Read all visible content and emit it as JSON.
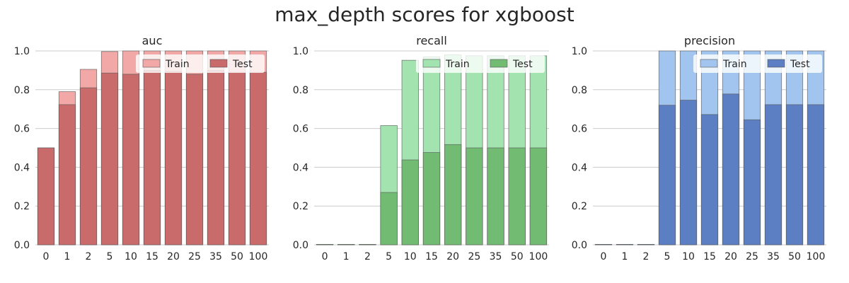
{
  "figure": {
    "title": "max_depth scores for xgboost"
  },
  "chart_data": [
    {
      "type": "bar",
      "title": "auc",
      "categories": [
        "0",
        "1",
        "2",
        "5",
        "10",
        "15",
        "20",
        "25",
        "35",
        "50",
        "100"
      ],
      "series": [
        {
          "name": "Train",
          "values": [
            0.5,
            0.79,
            0.905,
            0.997,
            1.0,
            1.0,
            1.0,
            1.0,
            1.0,
            1.0,
            1.0
          ],
          "color": "#f1a8a6"
        },
        {
          "name": "Test",
          "values": [
            0.5,
            0.723,
            0.81,
            0.886,
            0.88,
            0.9,
            0.895,
            0.88,
            0.9,
            0.89,
            0.89
          ],
          "color": "#c96b6a"
        }
      ],
      "ylim": [
        0,
        1.0
      ],
      "yticks": [
        "0.0",
        "0.2",
        "0.4",
        "0.6",
        "0.8",
        "1.0"
      ],
      "legend": "top-right",
      "grid": "y"
    },
    {
      "type": "bar",
      "title": "recall",
      "categories": [
        "0",
        "1",
        "2",
        "5",
        "10",
        "15",
        "20",
        "25",
        "35",
        "50",
        "100"
      ],
      "series": [
        {
          "name": "Train",
          "values": [
            0.0,
            0.0,
            0.0,
            0.615,
            0.952,
            0.97,
            0.98,
            0.975,
            0.975,
            0.975,
            0.975
          ],
          "color": "#a2e3b0"
        },
        {
          "name": "Test",
          "values": [
            0.0,
            0.0,
            0.0,
            0.27,
            0.438,
            0.476,
            0.517,
            0.5,
            0.5,
            0.5,
            0.5
          ],
          "color": "#72bb72"
        }
      ],
      "ylim": [
        0,
        1.0
      ],
      "yticks": [
        "0.0",
        "0.2",
        "0.4",
        "0.6",
        "0.8",
        "1.0"
      ],
      "legend": "top-right",
      "grid": "y"
    },
    {
      "type": "bar",
      "title": "precision",
      "categories": [
        "0",
        "1",
        "2",
        "5",
        "10",
        "15",
        "20",
        "25",
        "35",
        "50",
        "100"
      ],
      "series": [
        {
          "name": "Train",
          "values": [
            0.0,
            0.0,
            0.0,
            1.0,
            1.0,
            1.0,
            1.0,
            1.0,
            1.0,
            1.0,
            1.0
          ],
          "color": "#a2c5f0"
        },
        {
          "name": "Test",
          "values": [
            0.0,
            0.0,
            0.0,
            0.72,
            0.746,
            0.672,
            0.778,
            0.645,
            0.723,
            0.723,
            0.723
          ],
          "color": "#5b7fc2"
        }
      ],
      "ylim": [
        0,
        1.0
      ],
      "yticks": [
        "0.0",
        "0.2",
        "0.4",
        "0.6",
        "0.8",
        "1.0"
      ],
      "legend": "top-right",
      "grid": "y"
    }
  ]
}
